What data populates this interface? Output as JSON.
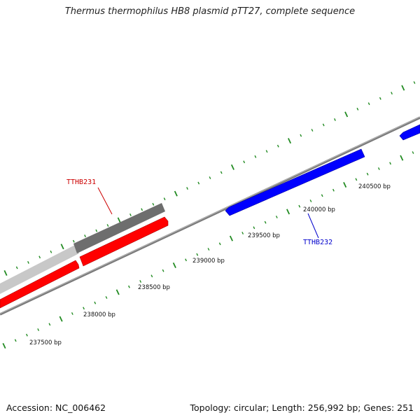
{
  "title": "Thermus thermophilus HB8 plasmid pTT27, complete sequence",
  "footer": {
    "accession": "Accession: NC_006462",
    "summary": "Topology: circular; Length: 256,992 bp; Genes: 251"
  },
  "colors": {
    "forward_gene": "#ff0000",
    "reverse_gene": "#0000ff",
    "tick": "#228b22",
    "backbone": "#808080",
    "label_forward": "#cc0000",
    "label_reverse": "#0000cc"
  },
  "tick_labels": [
    "237500 bp",
    "238000 bp",
    "238500 bp",
    "239000 bp",
    "239500 bp",
    "240000 bp",
    "240500 bp"
  ],
  "genes": [
    {
      "label": "TTHB231",
      "strand": "forward"
    },
    {
      "label": "TTHB232",
      "strand": "reverse"
    }
  ]
}
